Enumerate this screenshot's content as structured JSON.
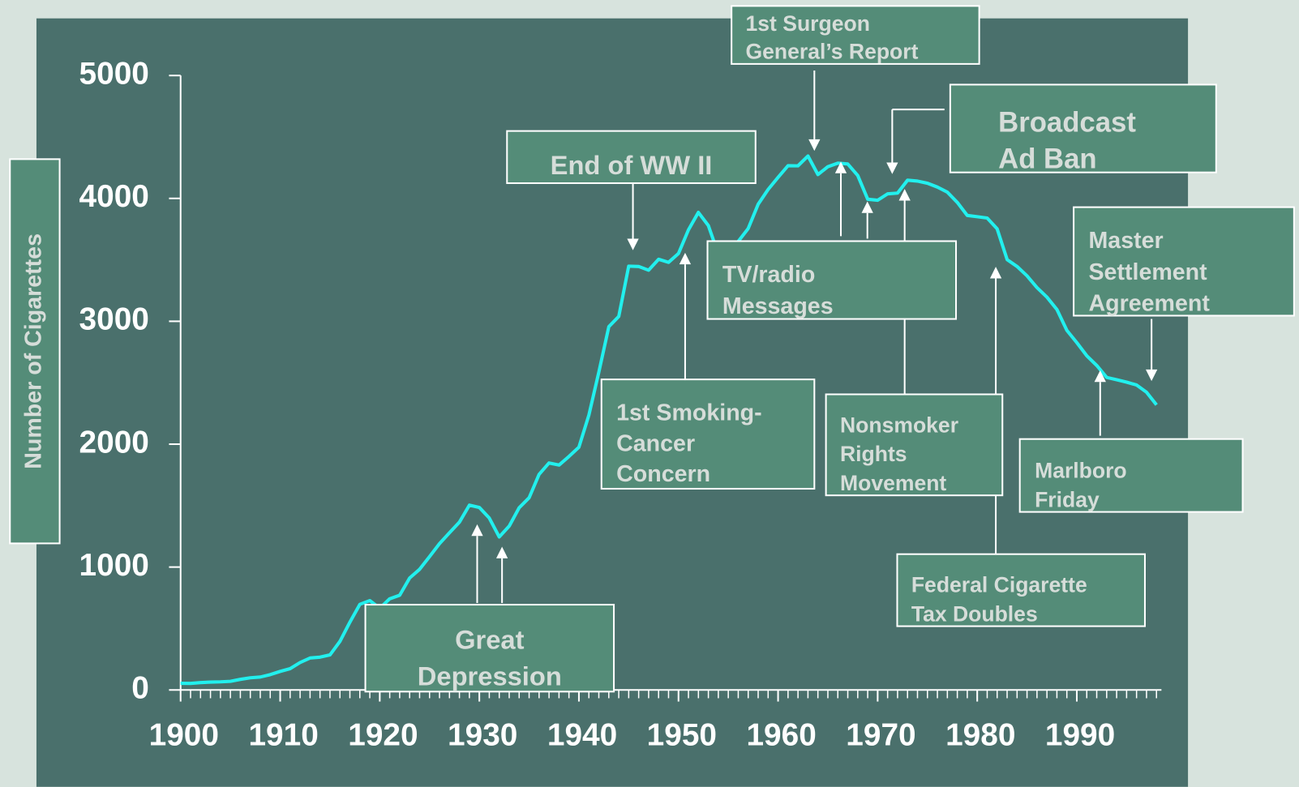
{
  "chart_data": {
    "type": "line",
    "y_label": "Number of Cigarettes",
    "x": [
      1900,
      1901,
      1902,
      1903,
      1904,
      1905,
      1906,
      1907,
      1908,
      1909,
      1910,
      1911,
      1912,
      1913,
      1914,
      1915,
      1916,
      1917,
      1918,
      1919,
      1920,
      1921,
      1922,
      1923,
      1924,
      1925,
      1926,
      1927,
      1928,
      1929,
      1930,
      1931,
      1932,
      1933,
      1934,
      1935,
      1936,
      1937,
      1938,
      1939,
      1940,
      1941,
      1942,
      1943,
      1944,
      1945,
      1946,
      1947,
      1948,
      1949,
      1950,
      1951,
      1952,
      1953,
      1954,
      1955,
      1956,
      1957,
      1958,
      1959,
      1960,
      1961,
      1962,
      1963,
      1964,
      1965,
      1966,
      1967,
      1968,
      1969,
      1970,
      1971,
      1972,
      1973,
      1974,
      1975,
      1976,
      1977,
      1978,
      1979,
      1980,
      1981,
      1982,
      1983,
      1984,
      1985,
      1986,
      1987,
      1988,
      1989,
      1990,
      1991,
      1992,
      1993,
      1994,
      1995,
      1996,
      1997,
      1998
    ],
    "values": [
      54,
      53,
      60,
      64,
      66,
      70,
      86,
      99,
      105,
      125,
      151,
      173,
      223,
      260,
      267,
      285,
      395,
      551,
      697,
      727,
      665,
      742,
      770,
      911,
      982,
      1085,
      1191,
      1279,
      1366,
      1504,
      1485,
      1399,
      1245,
      1334,
      1483,
      1564,
      1754,
      1847,
      1830,
      1900,
      1976,
      2236,
      2585,
      2956,
      3039,
      3449,
      3446,
      3416,
      3505,
      3480,
      3552,
      3744,
      3886,
      3778,
      3546,
      3597,
      3650,
      3755,
      3953,
      4073,
      4171,
      4266,
      4265,
      4345,
      4194,
      4258,
      4287,
      4280,
      4186,
      3993,
      3985,
      4037,
      4043,
      4148,
      4141,
      4123,
      4092,
      4051,
      3967,
      3861,
      3851,
      3840,
      3753,
      3502,
      3446,
      3370,
      3274,
      3197,
      3096,
      2926,
      2826,
      2720,
      2641,
      2543,
      2524,
      2505,
      2482,
      2423,
      2320
    ],
    "color": "#22f0ee",
    "xlim": [
      1900,
      1998
    ],
    "xticks": [
      1900,
      1910,
      1920,
      1930,
      1940,
      1950,
      1960,
      1970,
      1980,
      1990
    ],
    "ylim": [
      0,
      5000
    ],
    "yticks": [
      0,
      1000,
      2000,
      3000,
      4000,
      5000
    ],
    "annotations": [
      {
        "lines": [
          "Great",
          "Depression"
        ]
      },
      {
        "lines": [
          "End of WW II"
        ]
      },
      {
        "lines": [
          "1st Smoking-",
          "Cancer",
          "Concern"
        ]
      },
      {
        "lines": [
          "1st Surgeon",
          "General’s Report"
        ]
      },
      {
        "lines": [
          "Broadcast",
          "Ad Ban"
        ]
      },
      {
        "lines": [
          "Nonsmoker",
          "Rights",
          "Movement"
        ]
      },
      {
        "lines": [
          "TV/radio",
          "Messages"
        ]
      },
      {
        "lines": [
          "Federal Cigarette",
          "Tax Doubles"
        ]
      },
      {
        "lines": [
          "Master",
          "Settlement",
          "Agreement"
        ]
      },
      {
        "lines": [
          "Marlboro",
          "Friday"
        ]
      }
    ]
  }
}
